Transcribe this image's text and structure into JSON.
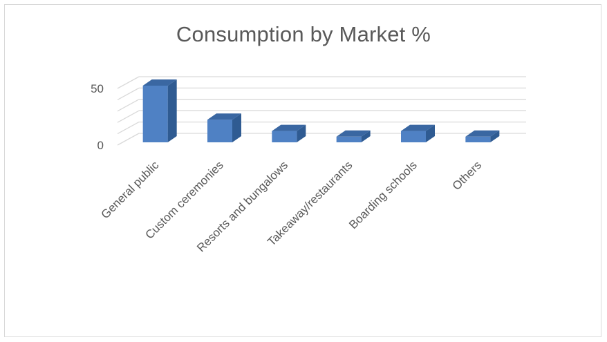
{
  "chart_data": {
    "type": "bar",
    "title": "Consumption by Market %",
    "categories": [
      "General public",
      "Custom ceremonies",
      "Resorts and bungalows",
      "Takeaway/restaurants",
      "Boarding schools",
      "Others"
    ],
    "values": [
      50,
      20,
      10,
      5,
      10,
      5
    ],
    "ylim": [
      0,
      50
    ],
    "yticks": [
      0,
      50
    ],
    "grid": true,
    "style": "3d-column",
    "colors": {
      "front": "#4f81c4",
      "side": "#2f5b92",
      "top": "#3a67a2",
      "grid": "#d9d9d9",
      "text": "#595959"
    }
  }
}
